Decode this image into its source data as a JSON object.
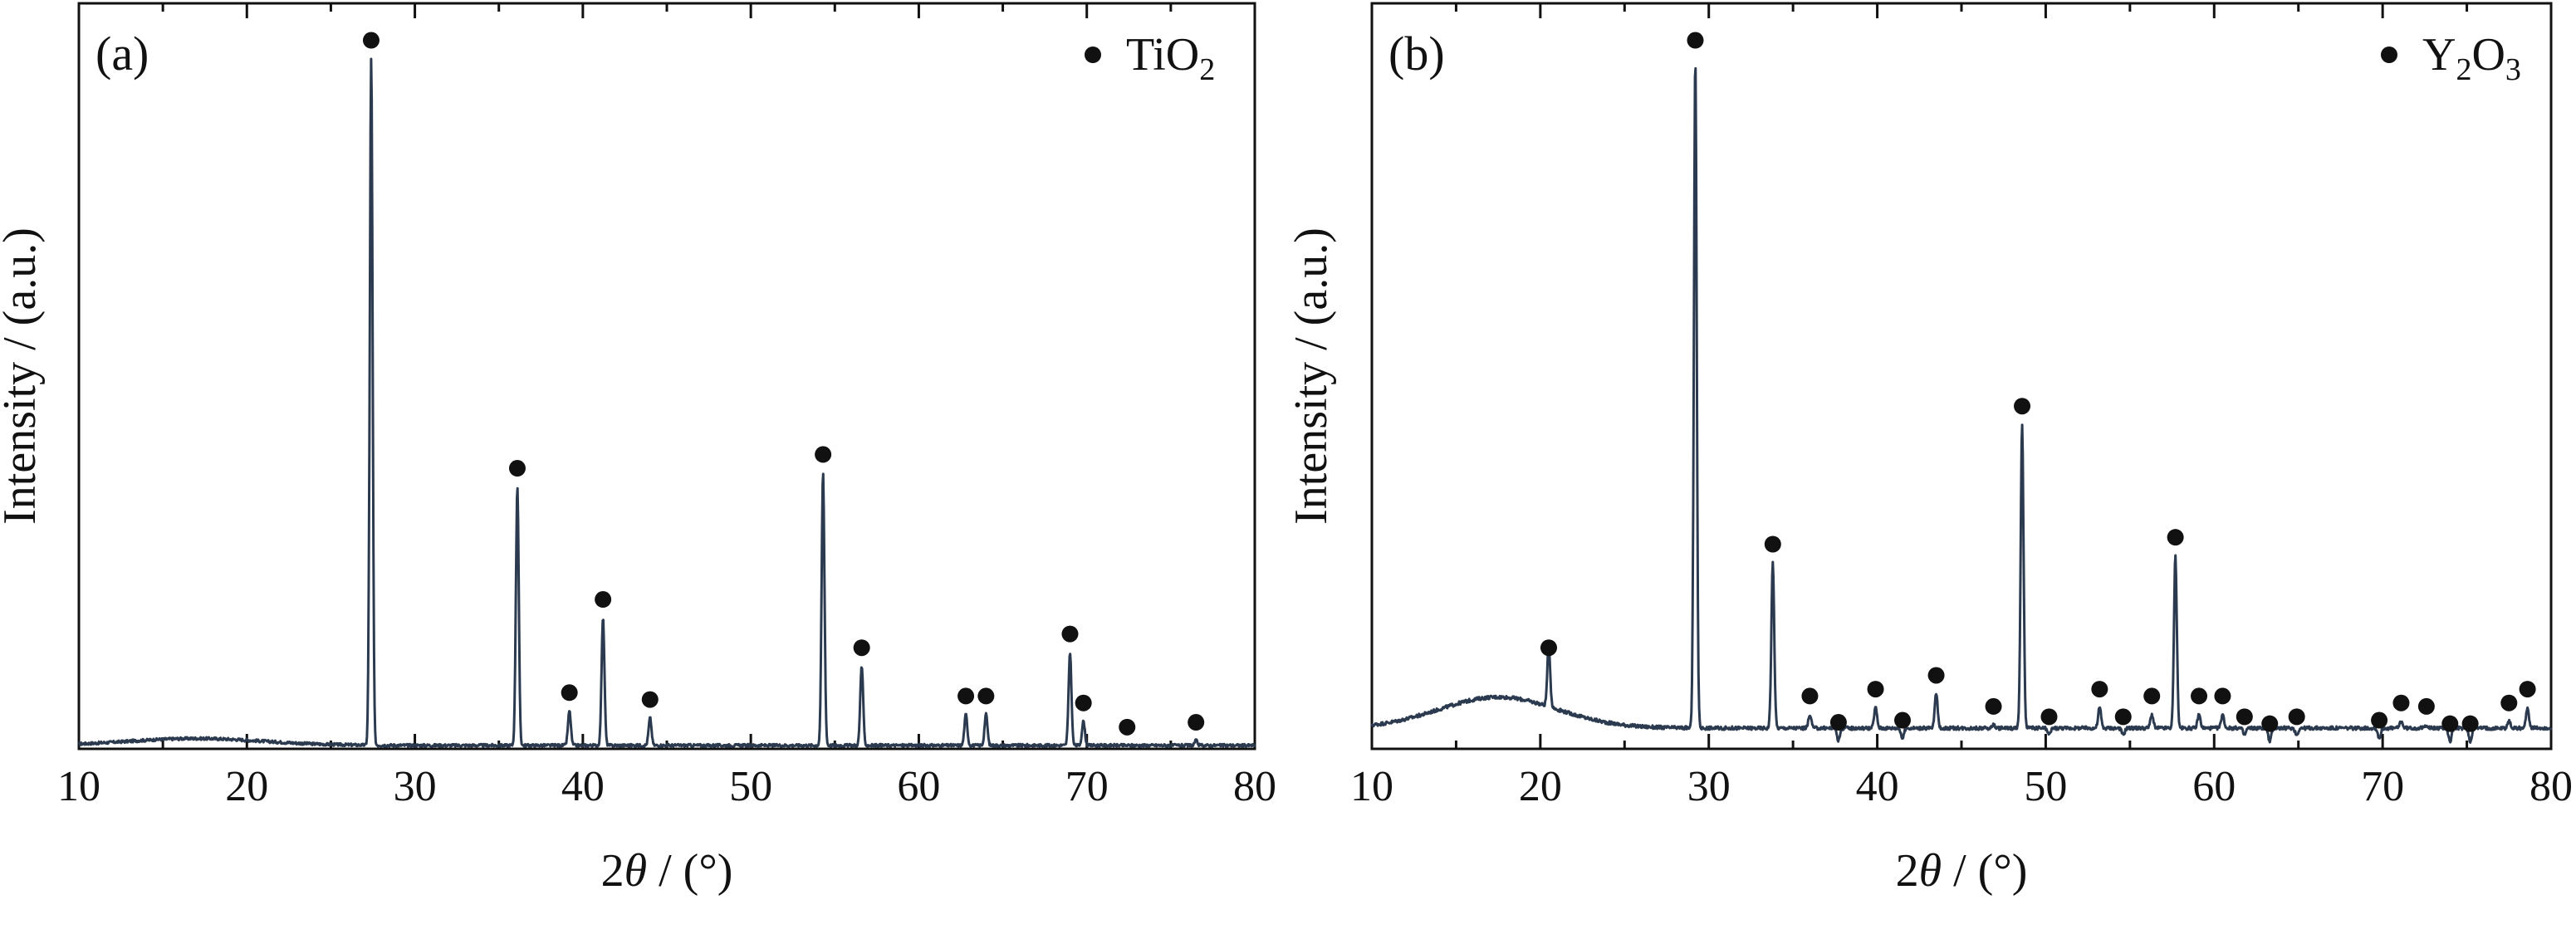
{
  "chart_data": [
    {
      "type": "line",
      "panel_label": "(a)",
      "xlabel_prefix": "2",
      "xlabel_symbol": "θ",
      "xlabel_suffix": " / (°)",
      "ylabel": "Intensity / (a.u.)",
      "xlim": [
        10,
        80
      ],
      "xticks": [
        10,
        20,
        30,
        40,
        50,
        60,
        70,
        80
      ],
      "ylim": [
        0,
        1.08
      ],
      "yticks_shown": false,
      "grid": false,
      "legend": {
        "position": "top-right",
        "marker": "filled-circle",
        "base": "TiO",
        "sub": "2"
      },
      "line_color": "#2b3a4e",
      "series": [
        {
          "baseline": 0.005,
          "hump": {
            "center": 17,
            "amplitude": 0.01,
            "width": 4
          },
          "noise": 0.004,
          "peaks": [
            {
              "x": 27.4,
              "y": 1.0,
              "marked": true
            },
            {
              "x": 36.1,
              "y": 0.38,
              "marked": true
            },
            {
              "x": 39.2,
              "y": 0.055,
              "marked": true
            },
            {
              "x": 41.2,
              "y": 0.19,
              "marked": true
            },
            {
              "x": 44.0,
              "y": 0.045,
              "marked": true
            },
            {
              "x": 54.3,
              "y": 0.4,
              "marked": true
            },
            {
              "x": 56.6,
              "y": 0.12,
              "marked": true
            },
            {
              "x": 62.8,
              "y": 0.05,
              "marked": true
            },
            {
              "x": 64.0,
              "y": 0.05,
              "marked": true
            },
            {
              "x": 69.0,
              "y": 0.14,
              "marked": true
            },
            {
              "x": 69.8,
              "y": 0.04,
              "marked": true
            },
            {
              "x": 72.4,
              "y": 0.005,
              "marked": true
            },
            {
              "x": 76.5,
              "y": 0.012,
              "marked": true
            }
          ]
        }
      ]
    },
    {
      "type": "line",
      "panel_label": "(b)",
      "xlabel_prefix": "2",
      "xlabel_symbol": "θ",
      "xlabel_suffix": " / (°)",
      "ylabel": "Intensity / (a.u.)",
      "xlim": [
        10,
        80
      ],
      "xticks": [
        10,
        20,
        30,
        40,
        50,
        60,
        70,
        80
      ],
      "ylim": [
        0,
        1.08
      ],
      "yticks_shown": false,
      "grid": false,
      "legend": {
        "position": "top-right",
        "marker": "filled-circle",
        "base": "Y",
        "sub": "2",
        "mid": "O",
        "sub2": "3"
      },
      "line_color": "#2b3a4e",
      "series": [
        {
          "baseline": 0.03,
          "hump": {
            "center": 17.5,
            "amplitude": 0.045,
            "width": 3.5
          },
          "noise": 0.005,
          "peaks": [
            {
              "x": 20.5,
              "y": 0.12,
              "marked": true
            },
            {
              "x": 29.2,
              "y": 1.0,
              "marked": true
            },
            {
              "x": 33.8,
              "y": 0.27,
              "marked": true
            },
            {
              "x": 36.0,
              "y": 0.05,
              "marked": true
            },
            {
              "x": 37.7,
              "y": 0.012,
              "marked": true
            },
            {
              "x": 39.9,
              "y": 0.06,
              "marked": true
            },
            {
              "x": 41.5,
              "y": 0.015,
              "marked": true
            },
            {
              "x": 43.5,
              "y": 0.08,
              "marked": true
            },
            {
              "x": 46.9,
              "y": 0.035,
              "marked": true
            },
            {
              "x": 48.6,
              "y": 0.47,
              "marked": true
            },
            {
              "x": 50.2,
              "y": 0.02,
              "marked": true
            },
            {
              "x": 53.2,
              "y": 0.06,
              "marked": true
            },
            {
              "x": 54.6,
              "y": 0.02,
              "marked": true
            },
            {
              "x": 56.3,
              "y": 0.05,
              "marked": true
            },
            {
              "x": 57.7,
              "y": 0.28,
              "marked": true
            },
            {
              "x": 59.1,
              "y": 0.05,
              "marked": true
            },
            {
              "x": 60.5,
              "y": 0.05,
              "marked": true
            },
            {
              "x": 61.8,
              "y": 0.02,
              "marked": true
            },
            {
              "x": 63.3,
              "y": 0.01,
              "marked": true
            },
            {
              "x": 64.9,
              "y": 0.02,
              "marked": true
            },
            {
              "x": 69.8,
              "y": 0.015,
              "marked": true
            },
            {
              "x": 71.1,
              "y": 0.04,
              "marked": true
            },
            {
              "x": 72.6,
              "y": 0.035,
              "marked": true
            },
            {
              "x": 74.0,
              "y": 0.01,
              "marked": true
            },
            {
              "x": 75.2,
              "y": 0.01,
              "marked": true
            },
            {
              "x": 77.5,
              "y": 0.04,
              "marked": true
            },
            {
              "x": 78.6,
              "y": 0.06,
              "marked": true
            }
          ]
        }
      ]
    }
  ]
}
